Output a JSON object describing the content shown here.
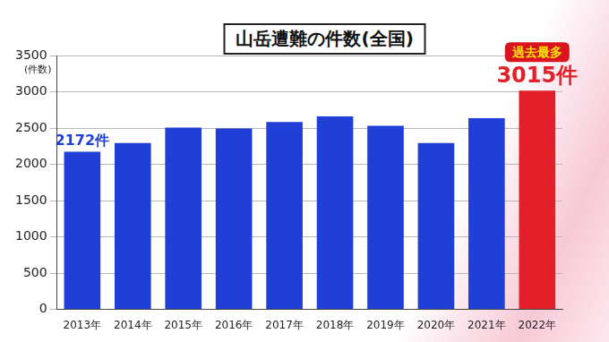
{
  "chart_data": {
    "type": "bar",
    "title": "山岳遭難の件数(全国)",
    "y_label": "(件数)",
    "categories": [
      "2013年",
      "2014年",
      "2015年",
      "2016年",
      "2017年",
      "2018年",
      "2019年",
      "2020年",
      "2021年",
      "2022年"
    ],
    "values": [
      2172,
      2293,
      2508,
      2495,
      2583,
      2661,
      2531,
      2294,
      2635,
      3015
    ],
    "value_labels": [
      "2172件",
      null,
      null,
      null,
      null,
      null,
      null,
      null,
      null,
      "3015件"
    ],
    "colors": [
      "#1f3fd6",
      "#1f3fd6",
      "#1f3fd6",
      "#1f3fd6",
      "#1f3fd6",
      "#1f3fd6",
      "#1f3fd6",
      "#1f3fd6",
      "#1f3fd6",
      "#e3202a"
    ],
    "annotations": [
      {
        "text": "過去最多",
        "category": "2022年"
      }
    ],
    "ylim": [
      0,
      3500
    ],
    "yticks": [
      0,
      500,
      1000,
      1500,
      2000,
      2500,
      3000,
      3500
    ],
    "grid": true
  }
}
